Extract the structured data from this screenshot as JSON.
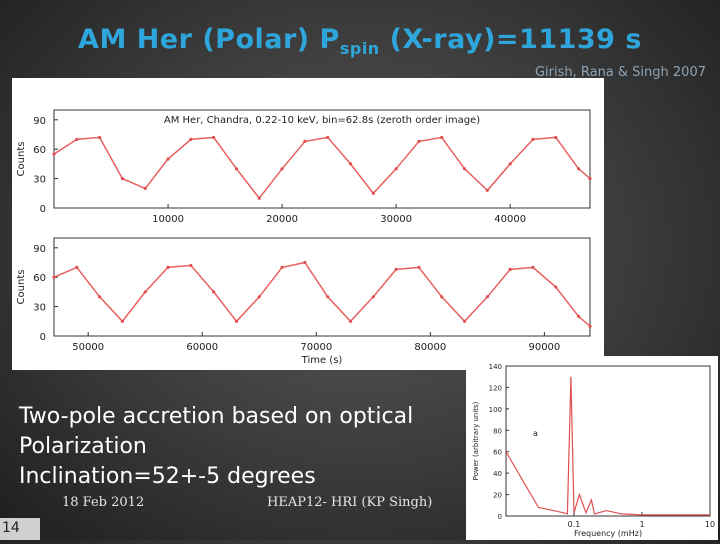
{
  "slide": {
    "title_main": "AM Her (Polar) P",
    "title_sub": "spin",
    "title_tail": " (X-ray)=11139 s",
    "credit": "Girish, Rana & Singh 2007",
    "body_lines": [
      "Two-pole accretion based on optical",
      "Polarization",
      "Inclination=52+-5 degrees"
    ],
    "footer_date": "18 Feb 2012",
    "footer_center": "HEAP12- HRI (KP Singh)",
    "slide_number": "14"
  },
  "chart_data": [
    {
      "type": "line",
      "title": "AM Her, Chandra, 0.22-10 keV, bin=62.8s (zeroth order image)",
      "xlabel": "Time (s)",
      "ylabel": "Counts",
      "panels": [
        {
          "xlim": [
            0,
            47000
          ],
          "ylim": [
            0,
            100
          ],
          "xticks": [
            10000,
            20000,
            30000,
            40000
          ],
          "yticks": [
            0,
            30,
            60,
            90
          ],
          "x": [
            0,
            2000,
            4000,
            6000,
            8000,
            10000,
            12000,
            14000,
            16000,
            18000,
            20000,
            22000,
            24000,
            26000,
            28000,
            30000,
            32000,
            34000,
            36000,
            38000,
            40000,
            42000,
            44000,
            46000,
            47000
          ],
          "y": [
            55,
            70,
            72,
            30,
            20,
            50,
            70,
            72,
            40,
            10,
            40,
            68,
            72,
            45,
            15,
            40,
            68,
            72,
            40,
            18,
            45,
            70,
            72,
            40,
            30
          ]
        },
        {
          "xlim": [
            47000,
            94000
          ],
          "ylim": [
            0,
            100
          ],
          "xticks": [
            50000,
            60000,
            70000,
            80000,
            90000
          ],
          "yticks": [
            0,
            30,
            60,
            90
          ],
          "x": [
            47000,
            49000,
            51000,
            53000,
            55000,
            57000,
            59000,
            61000,
            63000,
            65000,
            67000,
            69000,
            71000,
            73000,
            75000,
            77000,
            79000,
            81000,
            83000,
            85000,
            87000,
            89000,
            91000,
            93000,
            94000
          ],
          "y": [
            60,
            70,
            40,
            15,
            45,
            70,
            72,
            45,
            15,
            40,
            70,
            75,
            40,
            15,
            40,
            68,
            70,
            40,
            15,
            40,
            68,
            70,
            50,
            20,
            10
          ]
        }
      ]
    },
    {
      "type": "line",
      "xlabel": "Frequency (mHz)",
      "ylabel": "Power (arbitrary units)",
      "annotation": "a",
      "xscale": "log",
      "xlim": [
        0.01,
        10
      ],
      "ylim": [
        0,
        140
      ],
      "xticks": [
        0.1,
        1,
        10
      ],
      "yticks": [
        0,
        20,
        40,
        60,
        80,
        100,
        120,
        140
      ],
      "x": [
        0.01,
        0.03,
        0.05,
        0.07,
        0.08,
        0.09,
        0.1,
        0.12,
        0.15,
        0.18,
        0.2,
        0.3,
        0.5,
        1,
        2,
        5,
        10
      ],
      "y": [
        60,
        8,
        5,
        3,
        2,
        130,
        3,
        20,
        3,
        15,
        2,
        5,
        2,
        1,
        1,
        1,
        1
      ]
    }
  ]
}
